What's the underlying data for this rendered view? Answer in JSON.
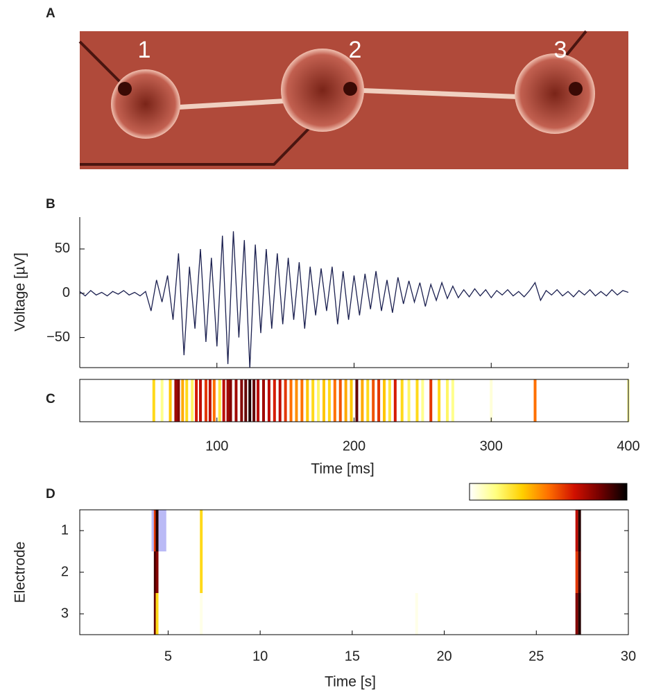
{
  "panel_labels": [
    "A",
    "B",
    "C",
    "D"
  ],
  "image": {
    "labels": [
      "1",
      "2",
      "3"
    ]
  },
  "chart_data": [
    {
      "type": "line",
      "ylabel": "Voltage [µV]",
      "color": "#1a1f4f",
      "x": [
        0,
        4,
        8,
        12,
        16,
        20,
        24,
        28,
        32,
        36,
        40,
        44,
        48,
        52,
        56,
        60,
        64,
        68,
        72,
        76,
        80,
        84,
        88,
        92,
        96,
        100,
        104,
        108,
        112,
        116,
        120,
        124,
        128,
        132,
        136,
        140,
        144,
        148,
        152,
        156,
        160,
        164,
        168,
        172,
        176,
        180,
        184,
        188,
        192,
        196,
        200,
        204,
        208,
        212,
        216,
        220,
        224,
        228,
        232,
        236,
        240,
        244,
        248,
        252,
        256,
        260,
        264,
        268,
        272,
        276,
        280,
        284,
        288,
        292,
        296,
        300,
        304,
        308,
        312,
        316,
        320,
        324,
        328,
        332,
        336,
        340,
        344,
        348,
        352,
        356,
        360,
        364,
        368,
        372,
        376,
        380,
        384,
        388,
        392,
        396,
        400
      ],
      "values": [
        2,
        -3,
        3,
        -2,
        1,
        -3,
        2,
        -1,
        3,
        -2,
        1,
        -3,
        2,
        -20,
        15,
        -10,
        20,
        -30,
        45,
        -70,
        30,
        -40,
        50,
        -55,
        40,
        -60,
        65,
        -80,
        70,
        -50,
        60,
        -85,
        55,
        -45,
        50,
        -40,
        45,
        -35,
        40,
        -30,
        35,
        -40,
        30,
        -25,
        28,
        -20,
        30,
        -35,
        25,
        -30,
        20,
        -25,
        22,
        -18,
        25,
        -20,
        15,
        -22,
        18,
        -12,
        14,
        -10,
        12,
        -15,
        10,
        -8,
        12,
        -6,
        8,
        -5,
        4,
        -4,
        5,
        -3,
        4,
        -5,
        3,
        -2,
        4,
        -3,
        2,
        -4,
        3,
        12,
        -8,
        3,
        -2,
        4,
        -3,
        2,
        -4,
        3,
        -2,
        4,
        -3,
        2,
        -3,
        4,
        -2,
        3,
        1
      ],
      "xlim": [
        0,
        400
      ],
      "ylim": [
        -84,
        86
      ],
      "xticks": [
        100,
        200,
        300,
        400
      ],
      "yticks": [
        {
          "value": -50,
          "label": "−50"
        },
        0,
        50
      ]
    },
    {
      "type": "strip",
      "xlabel": "Time [ms]",
      "colormap": [
        "#ffffff",
        "#ffff80",
        "#ffd000",
        "#ff7000",
        "#d01000",
        "#700000",
        "#000000"
      ],
      "x": [
        54,
        60,
        66,
        70,
        72,
        75,
        78,
        82,
        85,
        88,
        92,
        95,
        98,
        102,
        105,
        108,
        110,
        114,
        118,
        121,
        124,
        127,
        130,
        134,
        138,
        142,
        146,
        150,
        154,
        158,
        162,
        166,
        170,
        174,
        178,
        182,
        186,
        190,
        194,
        198,
        202,
        206,
        210,
        214,
        218,
        222,
        226,
        230,
        235,
        240,
        246,
        250,
        256,
        262,
        268,
        272,
        300,
        332,
        400
      ],
      "values": [
        0.3,
        0.15,
        0.35,
        0.75,
        0.8,
        0.4,
        0.3,
        0.2,
        0.65,
        0.7,
        0.6,
        0.7,
        0.5,
        0.25,
        0.7,
        0.75,
        0.8,
        0.75,
        0.8,
        0.85,
        0.95,
        0.85,
        0.7,
        0.75,
        0.7,
        0.65,
        0.7,
        0.6,
        0.5,
        0.45,
        0.5,
        0.35,
        0.3,
        0.2,
        0.35,
        0.3,
        0.5,
        0.55,
        0.4,
        0.35,
        0.85,
        0.4,
        0.3,
        0.55,
        0.6,
        0.35,
        0.25,
        0.65,
        0.3,
        0.2,
        0.3,
        0.15,
        0.6,
        0.3,
        0.2,
        0.15,
        0.05,
        0.5,
        0.1
      ],
      "xlim": [
        0,
        400
      ],
      "xticks": [
        100,
        200,
        300,
        400
      ]
    },
    {
      "type": "heatmap",
      "xlabel": "Time [s]",
      "ylabel": "Electrode",
      "colormap": [
        "#ffffff",
        "#ffff80",
        "#ffd000",
        "#ff7000",
        "#d01000",
        "#700000",
        "#000000"
      ],
      "x": [
        4.3,
        4.4,
        6.8,
        18.5,
        27.2,
        27.35
      ],
      "series": [
        {
          "name": "1",
          "values": [
            0.6,
            0.95,
            0.3,
            0,
            0.7,
            0.95
          ]
        },
        {
          "name": "2",
          "values": [
            0.9,
            0.8,
            0.3,
            0,
            0.6,
            0.9
          ]
        },
        {
          "name": "3",
          "values": [
            0.85,
            0.3,
            0.03,
            0.03,
            0.8,
            0.95
          ]
        }
      ],
      "highlight": {
        "x": [
          4.1,
          4.9
        ],
        "electrode": 1,
        "color": "#8c8cf0"
      },
      "xlim": [
        0.2,
        30
      ],
      "ylim": [
        0.5,
        3.5
      ],
      "xticks": [
        5,
        10,
        15,
        20,
        25,
        30
      ],
      "yticks": [
        1,
        2,
        3
      ]
    }
  ]
}
